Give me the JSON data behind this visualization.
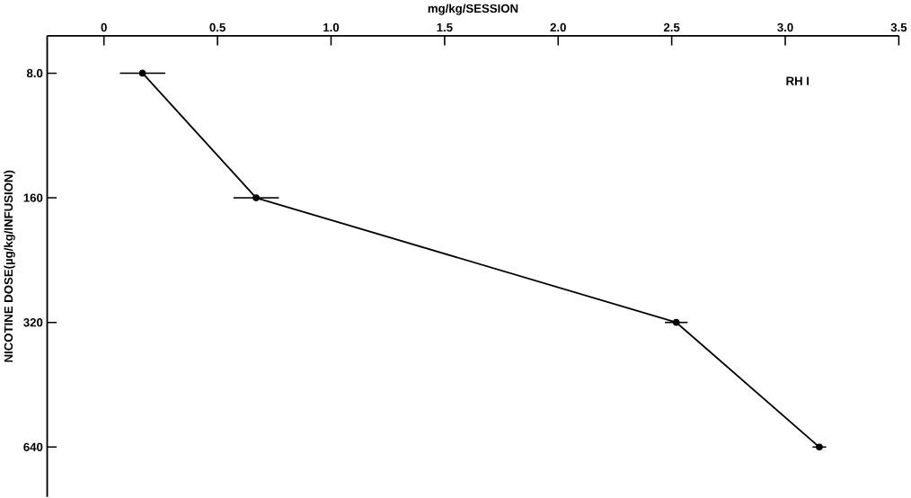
{
  "chart_data": {
    "type": "line",
    "orientation": "horizontal",
    "xlabel": "mg/kg/SESSION",
    "ylabel": "NICOTINE DOSE(µg/kg/INFUSION)",
    "categories": [
      "8.0",
      "160",
      "320",
      "640"
    ],
    "series": [
      {
        "color": "#000000",
        "values": [
          0.17,
          0.67,
          2.52,
          3.15
        ],
        "errors": [
          0.1,
          0.1,
          0.05,
          0.03
        ]
      }
    ],
    "xlim": [
      -0.25,
      3.5
    ],
    "xticks": [
      0,
      0.5,
      {
        "value": 1,
        "label": "1.0"
      },
      1.5,
      {
        "value": 2,
        "label": "2.0"
      },
      2.5,
      {
        "value": 3,
        "label": "3.0"
      },
      3.5
    ],
    "annotations": [
      "RH I"
    ],
    "marker": "circle",
    "line_style": "solid",
    "grid": false,
    "legend": false
  }
}
